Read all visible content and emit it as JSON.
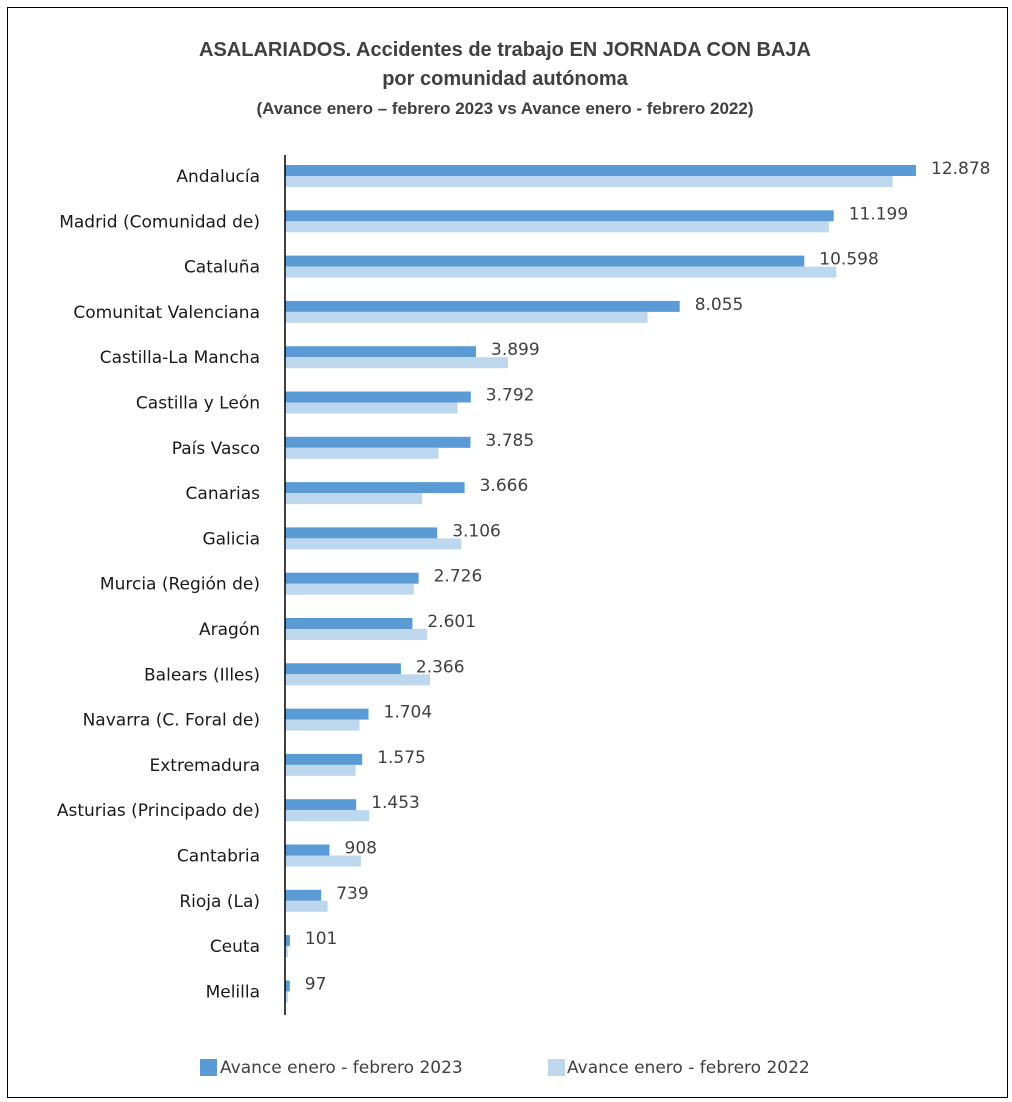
{
  "chart_data": {
    "type": "bar",
    "orientation": "horizontal",
    "title": "ASALARIADOS. Accidentes de trabajo EN JORNADA CON BAJA",
    "subtitle": "por comunidad autónoma",
    "subtitle2": "(Avance enero – febrero 2023 vs Avance enero - febrero 2022)",
    "xlabel": "",
    "ylabel": "",
    "xlim": [
      0,
      12878
    ],
    "grid": false,
    "legend_position": "bottom",
    "categories": [
      "Andalucía",
      "Madrid (Comunidad de)",
      "Cataluña",
      "Comunitat Valenciana",
      "Castilla-La Mancha",
      "Castilla y León",
      "País Vasco",
      "Canarias",
      "Galicia",
      "Murcia (Región de)",
      "Aragón",
      "Balears (Illes)",
      "Navarra (C. Foral de)",
      "Extremadura",
      "Asturias (Principado de)",
      "Cantabria",
      "Rioja (La)",
      "Ceuta",
      "Melilla"
    ],
    "series": [
      {
        "name": "Avance enero - febrero 2023",
        "color": "#5B9BD5",
        "values": [
          12878,
          11199,
          10598,
          8055,
          3899,
          3792,
          3785,
          3666,
          3106,
          2726,
          2601,
          2366,
          1704,
          1575,
          1453,
          908,
          739,
          101,
          97
        ],
        "labels": [
          "12.878",
          "11.199",
          "10.598",
          "8.055",
          "3.899",
          "3.792",
          "3.785",
          "3.666",
          "3.106",
          "2.726",
          "2.601",
          "2.366",
          "1.704",
          "1.575",
          "1.453",
          "908",
          "739",
          "101",
          "97"
        ]
      },
      {
        "name": "Avance enero - febrero 2022",
        "color": "#BDD7EE",
        "values": [
          12400,
          11100,
          11250,
          7400,
          4550,
          3520,
          3130,
          2800,
          3600,
          2630,
          2900,
          2960,
          1520,
          1440,
          1720,
          1550,
          870,
          60,
          60
        ]
      }
    ]
  }
}
